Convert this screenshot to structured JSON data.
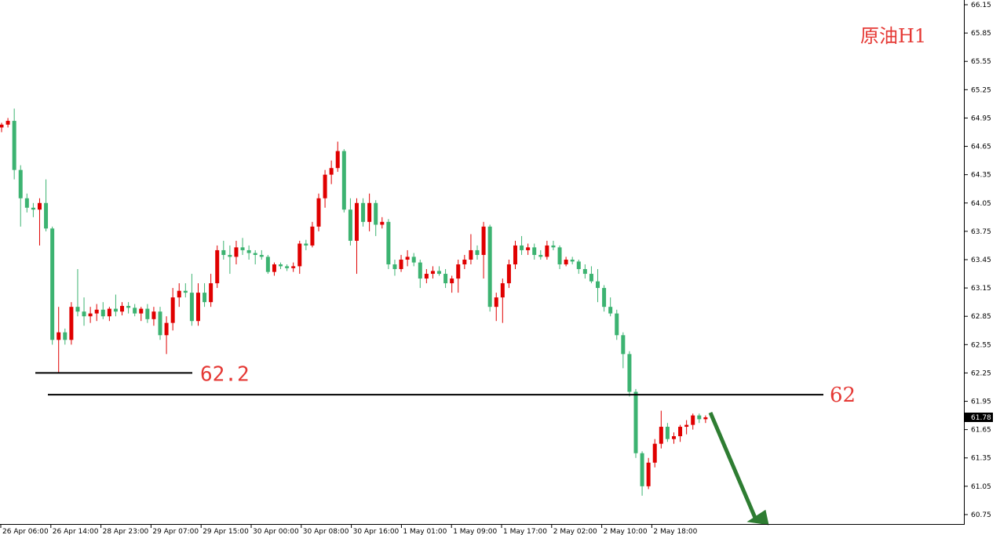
{
  "chart_data": {
    "type": "candlestick",
    "title": "原油H1",
    "ylim": [
      60.65,
      66.2
    ],
    "y_ticks": [
      "66.15",
      "65.85",
      "65.55",
      "65.25",
      "64.95",
      "64.65",
      "64.35",
      "64.05",
      "63.75",
      "63.45",
      "63.15",
      "62.85",
      "62.55",
      "62.25",
      "61.95",
      "61.65",
      "61.35",
      "61.05",
      "60.75"
    ],
    "x_ticks": [
      "26 Apr 06:00",
      "26 Apr 14:00",
      "28 Apr 23:00",
      "29 Apr 07:00",
      "29 Apr 15:00",
      "30 Apr 00:00",
      "30 Apr 08:00",
      "30 Apr 16:00",
      "1 May 01:00",
      "1 May 09:00",
      "1 May 17:00",
      "2 May 02:00",
      "2 May 10:00",
      "2 May 18:00"
    ],
    "current_price": "61.78",
    "levels": [
      {
        "label": "62.2",
        "value": 62.25
      },
      {
        "label": "62",
        "value": 62.02
      }
    ],
    "up_color": "#e00000",
    "down_color": "#3cb371",
    "title_color": "#e53935",
    "arrow_color": "#2e7d32",
    "candles": [
      {
        "o": 64.85,
        "h": 64.9,
        "l": 64.8,
        "c": 64.88
      },
      {
        "o": 64.88,
        "h": 64.95,
        "l": 64.85,
        "c": 64.92
      },
      {
        "o": 64.92,
        "h": 65.05,
        "l": 64.3,
        "c": 64.4
      },
      {
        "o": 64.4,
        "h": 64.45,
        "l": 63.8,
        "c": 64.1
      },
      {
        "o": 64.1,
        "h": 64.15,
        "l": 63.95,
        "c": 64.0
      },
      {
        "o": 64.0,
        "h": 64.05,
        "l": 63.9,
        "c": 63.98
      },
      {
        "o": 63.98,
        "h": 64.1,
        "l": 63.6,
        "c": 64.05
      },
      {
        "o": 64.05,
        "h": 64.3,
        "l": 63.75,
        "c": 63.78
      },
      {
        "o": 63.78,
        "h": 63.8,
        "l": 62.55,
        "c": 62.6
      },
      {
        "o": 62.6,
        "h": 62.95,
        "l": 62.25,
        "c": 62.68
      },
      {
        "o": 62.68,
        "h": 62.72,
        "l": 62.55,
        "c": 62.6
      },
      {
        "o": 62.6,
        "h": 63.0,
        "l": 62.55,
        "c": 62.95
      },
      {
        "o": 62.95,
        "h": 63.35,
        "l": 62.85,
        "c": 62.9
      },
      {
        "o": 62.9,
        "h": 63.05,
        "l": 62.75,
        "c": 62.85
      },
      {
        "o": 62.85,
        "h": 62.95,
        "l": 62.78,
        "c": 62.88
      },
      {
        "o": 62.88,
        "h": 62.98,
        "l": 62.8,
        "c": 62.92
      },
      {
        "o": 62.92,
        "h": 63.0,
        "l": 62.82,
        "c": 62.85
      },
      {
        "o": 62.85,
        "h": 62.95,
        "l": 62.8,
        "c": 62.93
      },
      {
        "o": 62.93,
        "h": 63.08,
        "l": 62.85,
        "c": 62.9
      },
      {
        "o": 62.9,
        "h": 63.0,
        "l": 62.86,
        "c": 62.96
      },
      {
        "o": 62.96,
        "h": 63.0,
        "l": 62.88,
        "c": 62.94
      },
      {
        "o": 62.94,
        "h": 62.98,
        "l": 62.85,
        "c": 62.88
      },
      {
        "o": 62.88,
        "h": 62.95,
        "l": 62.8,
        "c": 62.93
      },
      {
        "o": 62.93,
        "h": 62.98,
        "l": 62.78,
        "c": 62.82
      },
      {
        "o": 62.82,
        "h": 62.95,
        "l": 62.75,
        "c": 62.9
      },
      {
        "o": 62.9,
        "h": 62.95,
        "l": 62.6,
        "c": 62.65
      },
      {
        "o": 62.65,
        "h": 62.85,
        "l": 62.45,
        "c": 62.78
      },
      {
        "o": 62.78,
        "h": 63.15,
        "l": 62.7,
        "c": 63.05
      },
      {
        "o": 63.05,
        "h": 63.2,
        "l": 62.95,
        "c": 63.12
      },
      {
        "o": 63.12,
        "h": 63.2,
        "l": 63.05,
        "c": 63.1
      },
      {
        "o": 63.1,
        "h": 63.3,
        "l": 62.75,
        "c": 62.8
      },
      {
        "o": 62.8,
        "h": 63.2,
        "l": 62.75,
        "c": 63.1
      },
      {
        "o": 63.1,
        "h": 63.2,
        "l": 62.95,
        "c": 63.0
      },
      {
        "o": 63.0,
        "h": 63.3,
        "l": 62.95,
        "c": 63.2
      },
      {
        "o": 63.2,
        "h": 63.6,
        "l": 63.15,
        "c": 63.55
      },
      {
        "o": 63.55,
        "h": 63.65,
        "l": 63.45,
        "c": 63.5
      },
      {
        "o": 63.5,
        "h": 63.6,
        "l": 63.3,
        "c": 63.48
      },
      {
        "o": 63.48,
        "h": 63.65,
        "l": 63.4,
        "c": 63.58
      },
      {
        "o": 63.58,
        "h": 63.68,
        "l": 63.5,
        "c": 63.55
      },
      {
        "o": 63.55,
        "h": 63.6,
        "l": 63.45,
        "c": 63.52
      },
      {
        "o": 63.52,
        "h": 63.55,
        "l": 63.4,
        "c": 63.5
      },
      {
        "o": 63.5,
        "h": 63.55,
        "l": 63.45,
        "c": 63.48
      },
      {
        "o": 63.48,
        "h": 63.5,
        "l": 63.3,
        "c": 63.32
      },
      {
        "o": 63.32,
        "h": 63.42,
        "l": 63.28,
        "c": 63.4
      },
      {
        "o": 63.4,
        "h": 63.42,
        "l": 63.35,
        "c": 63.38
      },
      {
        "o": 63.38,
        "h": 63.4,
        "l": 63.33,
        "c": 63.36
      },
      {
        "o": 63.36,
        "h": 63.42,
        "l": 63.32,
        "c": 63.38
      },
      {
        "o": 63.38,
        "h": 63.65,
        "l": 63.3,
        "c": 63.62
      },
      {
        "o": 63.62,
        "h": 63.66,
        "l": 63.55,
        "c": 63.6
      },
      {
        "o": 63.6,
        "h": 63.85,
        "l": 63.58,
        "c": 63.8
      },
      {
        "o": 63.8,
        "h": 64.15,
        "l": 63.75,
        "c": 64.1
      },
      {
        "o": 64.1,
        "h": 64.4,
        "l": 64.0,
        "c": 64.35
      },
      {
        "o": 64.35,
        "h": 64.5,
        "l": 64.25,
        "c": 64.42
      },
      {
        "o": 64.42,
        "h": 64.7,
        "l": 64.38,
        "c": 64.6
      },
      {
        "o": 64.6,
        "h": 64.62,
        "l": 63.95,
        "c": 63.98
      },
      {
        "o": 63.98,
        "h": 64.1,
        "l": 63.6,
        "c": 63.65
      },
      {
        "o": 63.65,
        "h": 64.1,
        "l": 63.3,
        "c": 64.05
      },
      {
        "o": 64.05,
        "h": 64.1,
        "l": 63.8,
        "c": 63.85
      },
      {
        "o": 63.85,
        "h": 64.15,
        "l": 63.75,
        "c": 64.05
      },
      {
        "o": 64.05,
        "h": 64.08,
        "l": 63.7,
        "c": 63.82
      },
      {
        "o": 63.82,
        "h": 63.9,
        "l": 63.78,
        "c": 63.85
      },
      {
        "o": 63.85,
        "h": 63.88,
        "l": 63.35,
        "c": 63.4
      },
      {
        "o": 63.4,
        "h": 63.45,
        "l": 63.28,
        "c": 63.35
      },
      {
        "o": 63.35,
        "h": 63.5,
        "l": 63.32,
        "c": 63.45
      },
      {
        "o": 63.45,
        "h": 63.55,
        "l": 63.38,
        "c": 63.48
      },
      {
        "o": 63.48,
        "h": 63.52,
        "l": 63.38,
        "c": 63.42
      },
      {
        "o": 63.42,
        "h": 63.45,
        "l": 63.15,
        "c": 63.25
      },
      {
        "o": 63.25,
        "h": 63.35,
        "l": 63.2,
        "c": 63.3
      },
      {
        "o": 63.3,
        "h": 63.38,
        "l": 63.25,
        "c": 63.33
      },
      {
        "o": 63.33,
        "h": 63.38,
        "l": 63.28,
        "c": 63.3
      },
      {
        "o": 63.3,
        "h": 63.35,
        "l": 63.15,
        "c": 63.2
      },
      {
        "o": 63.2,
        "h": 63.28,
        "l": 63.1,
        "c": 63.25
      },
      {
        "o": 63.25,
        "h": 63.45,
        "l": 63.1,
        "c": 63.4
      },
      {
        "o": 63.4,
        "h": 63.5,
        "l": 63.35,
        "c": 63.45
      },
      {
        "o": 63.45,
        "h": 63.72,
        "l": 63.4,
        "c": 63.55
      },
      {
        "o": 63.55,
        "h": 63.6,
        "l": 63.45,
        "c": 63.5
      },
      {
        "o": 63.5,
        "h": 63.85,
        "l": 63.25,
        "c": 63.8
      },
      {
        "o": 63.8,
        "h": 63.82,
        "l": 62.9,
        "c": 62.95
      },
      {
        "o": 62.95,
        "h": 63.1,
        "l": 62.8,
        "c": 63.05
      },
      {
        "o": 63.05,
        "h": 63.25,
        "l": 62.78,
        "c": 63.2
      },
      {
        "o": 63.2,
        "h": 63.45,
        "l": 63.15,
        "c": 63.4
      },
      {
        "o": 63.4,
        "h": 63.65,
        "l": 63.35,
        "c": 63.6
      },
      {
        "o": 63.6,
        "h": 63.7,
        "l": 63.5,
        "c": 63.55
      },
      {
        "o": 63.55,
        "h": 63.62,
        "l": 63.5,
        "c": 63.58
      },
      {
        "o": 63.58,
        "h": 63.62,
        "l": 63.45,
        "c": 63.5
      },
      {
        "o": 63.5,
        "h": 63.55,
        "l": 63.45,
        "c": 63.48
      },
      {
        "o": 63.48,
        "h": 63.65,
        "l": 63.45,
        "c": 63.6
      },
      {
        "o": 63.6,
        "h": 63.65,
        "l": 63.55,
        "c": 63.58
      },
      {
        "o": 63.58,
        "h": 63.6,
        "l": 63.35,
        "c": 63.4
      },
      {
        "o": 63.4,
        "h": 63.48,
        "l": 63.38,
        "c": 63.45
      },
      {
        "o": 63.45,
        "h": 63.48,
        "l": 63.4,
        "c": 63.43
      },
      {
        "o": 63.43,
        "h": 63.45,
        "l": 63.3,
        "c": 63.35
      },
      {
        "o": 63.35,
        "h": 63.4,
        "l": 63.25,
        "c": 63.3
      },
      {
        "o": 63.3,
        "h": 63.38,
        "l": 63.2,
        "c": 63.22
      },
      {
        "o": 63.22,
        "h": 63.35,
        "l": 63.0,
        "c": 63.15
      },
      {
        "o": 63.15,
        "h": 63.18,
        "l": 62.9,
        "c": 62.95
      },
      {
        "o": 62.95,
        "h": 63.05,
        "l": 62.85,
        "c": 62.88
      },
      {
        "o": 62.88,
        "h": 62.92,
        "l": 62.6,
        "c": 62.65
      },
      {
        "o": 62.65,
        "h": 62.68,
        "l": 62.3,
        "c": 62.45
      },
      {
        "o": 62.45,
        "h": 62.48,
        "l": 62.0,
        "c": 62.05
      },
      {
        "o": 62.05,
        "h": 62.08,
        "l": 61.35,
        "c": 61.4
      },
      {
        "o": 61.4,
        "h": 61.42,
        "l": 60.95,
        "c": 61.05
      },
      {
        "o": 61.05,
        "h": 61.35,
        "l": 61.02,
        "c": 61.3
      },
      {
        "o": 61.3,
        "h": 61.55,
        "l": 61.25,
        "c": 61.5
      },
      {
        "o": 61.5,
        "h": 61.85,
        "l": 61.45,
        "c": 61.68
      },
      {
        "o": 61.68,
        "h": 61.72,
        "l": 61.52,
        "c": 61.55
      },
      {
        "o": 61.55,
        "h": 61.62,
        "l": 61.5,
        "c": 61.58
      },
      {
        "o": 61.58,
        "h": 61.7,
        "l": 61.52,
        "c": 61.68
      },
      {
        "o": 61.68,
        "h": 61.75,
        "l": 61.6,
        "c": 61.7
      },
      {
        "o": 61.7,
        "h": 61.82,
        "l": 61.65,
        "c": 61.8
      },
      {
        "o": 61.8,
        "h": 61.82,
        "l": 61.72,
        "c": 61.76
      },
      {
        "o": 61.76,
        "h": 61.8,
        "l": 61.72,
        "c": 61.78
      }
    ]
  }
}
